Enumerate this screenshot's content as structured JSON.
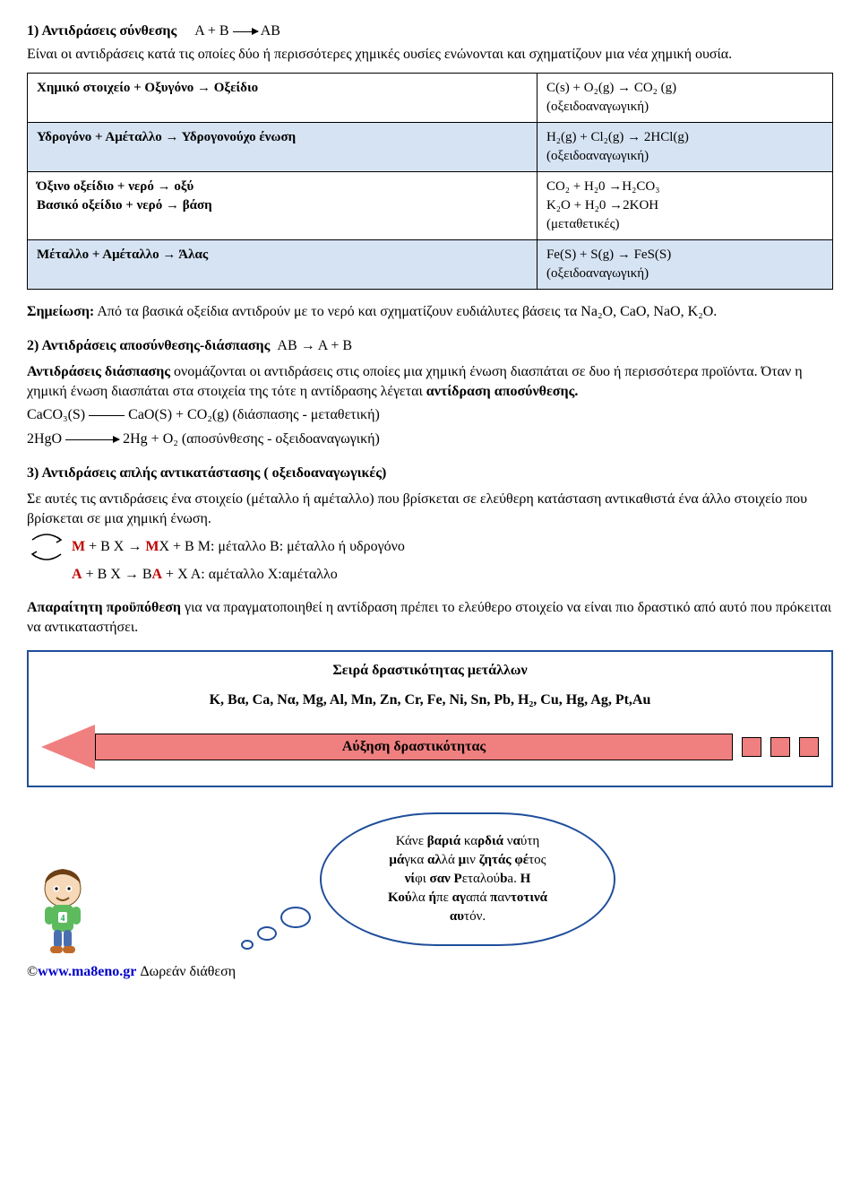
{
  "s1": {
    "heading": "1) Αντιδράσεις σύνθεσης",
    "formula": "A + B",
    "formula_rhs": "AB",
    "body": "Είναι οι αντιδράσεις κατά τις οποίες δύο ή περισσότερες χημικές ουσίες ενώνονται και σχηματίζουν μια νέα χημική ουσία."
  },
  "table": {
    "colors": {
      "shaded_bg": "#d6e3f3",
      "border": "#000000"
    },
    "rows": [
      {
        "left": "Χημικό στοιχείο + Οξυγόνο → Οξείδιο",
        "right": "C(s)  +  O₂(g) → CO₂ (g)\n(οξειδοαναγωγική)",
        "shaded": false
      },
      {
        "left": "Υδρογόνο + Αμέταλλο → Υδρογονούχο ένωση",
        "right": "H₂(g) + Cl₂(g) → 2HCl(g)\n(οξειδοαναγωγική)",
        "shaded": true
      },
      {
        "left": "Όξινο οξείδιο + νερό → οξύ\nΒασικό  οξείδιο + νερό → βάση",
        "right": "CO₂ + H₂0 →H₂CO₃\n K₂O + H₂0 →2KOH\n(μεταθετικές)",
        "shaded": false
      },
      {
        "left": "Μέταλλο + Αμέταλλο → Άλας",
        "right": "Fe(S)  +  S(g) → FeS(S)\n(οξειδοαναγωγική)",
        "shaded": true
      }
    ]
  },
  "note": {
    "label": "Σημείωση:",
    "text": " Από τα βασικά οξείδια αντιδρούν με το νερό και σχηματίζουν ευδιάλυτες βάσεις τα Na₂O, CaO, NaO, K₂O."
  },
  "s2": {
    "heading": "2) Αντιδράσεις αποσύνθεσης-διάσπασης",
    "formula": "AB     →   A + B",
    "p1_a": "Αντιδράσεις διάσπασης",
    "p1_b": " ονομάζονται οι αντιδράσεις στις οποίες μια χημική ένωση διασπάται σε δυο ή περισσότερα προϊόντα. Όταν η χημική ένωση διασπάται στα στοιχεία της τότε η αντίδρασης λέγεται ",
    "p1_c": "αντίδραση αποσύνθεσης.",
    "eq1_lhs": "CaCO₃(S)",
    "eq1_rhs": " CaO(S) + CO₂(g)    (διάσπασης - μεταθετική)",
    "eq2_lhs": "2HgO ",
    "eq2_rhs": " 2Hg   +   O₂  (αποσύνθεσης - οξειδοαναγωγική)"
  },
  "s3": {
    "heading": "3) Αντιδράσεις απλής αντικατάστασης ( οξειδοαναγωγικές)",
    "body": "Σε αυτές τις αντιδράσεις ένα στοιχείο (μέταλλο ή αμέταλλο) που βρίσκεται σε ελεύθερη κατάσταση αντικαθιστά ένα άλλο στοιχείο που βρίσκεται σε μια χημική ένωση.",
    "row1": {
      "M1": "M",
      "plus": "   +    B X    →       ",
      "M2": "M",
      "tail": "X    +  B     M: μέταλλο   B: μέταλλο ή υδρογόνο"
    },
    "row2": {
      "A1": "A",
      "plus": "   +     B X    →        B",
      "A2": "A",
      "tail": "    +  X    A: αμέταλλο   X:αμέταλλο"
    },
    "cond_a": "Απαραίτητη προϋπόθεση",
    "cond_b": " για να πραγματοποιηθεί η αντίδραση πρέπει το ελεύθερο στοιχείο να είναι πιο δραστικό από αυτό που πρόκειται να αντικαταστήσει."
  },
  "box": {
    "title": "Σειρά  δραστικότητας μετάλλων",
    "series": "K, Bα, Ca, Nα, Mg, Al, Mn, Zn, Cr, Fe, Ni, Sn, Pb, H₂, Cu, Hg, Ag, Pt,Au",
    "arrow_label": "Αύξηση δραστικότητας",
    "colors": {
      "border": "#1f4e9b",
      "arrow_fill": "#f08080"
    }
  },
  "bubble": {
    "l1": "Κάνε ",
    "l1b": "βαριά",
    "l1c": " κα",
    "l1d": "ρδιά",
    "l1e": " ν",
    "l1f": "α",
    "l1g": "ύτη",
    "l2a": "μά",
    "l2b": "γκα ",
    "l2c": "αλ",
    "l2d": "λά ",
    "l2e": "μ",
    "l2f": "ιν ",
    "l2g": "ζητάς ",
    "l2h": "φέ",
    "l2i": "τος",
    "l3a": "νί",
    "l3b": "φι ",
    "l3c": "σαν ",
    "l3d": "P",
    "l3e": "εταλού",
    "l3f": "b",
    "l3g": "a. ",
    "l3h": "H",
    "l4a": "Κού",
    "l4b": "λα ",
    "l4c": "ή",
    "l4d": "πε ",
    "l4e": "αγ",
    "l4f": "απά ",
    "l4g": "π",
    "l4h": "αν",
    "l4i": "τοτινά",
    "l5a": "αυ",
    "l5b": "τόν."
  },
  "footer": {
    "copy": "©",
    "url": "www.ma8eno.gr",
    "rest": " Δωρεάν διάθεση"
  }
}
